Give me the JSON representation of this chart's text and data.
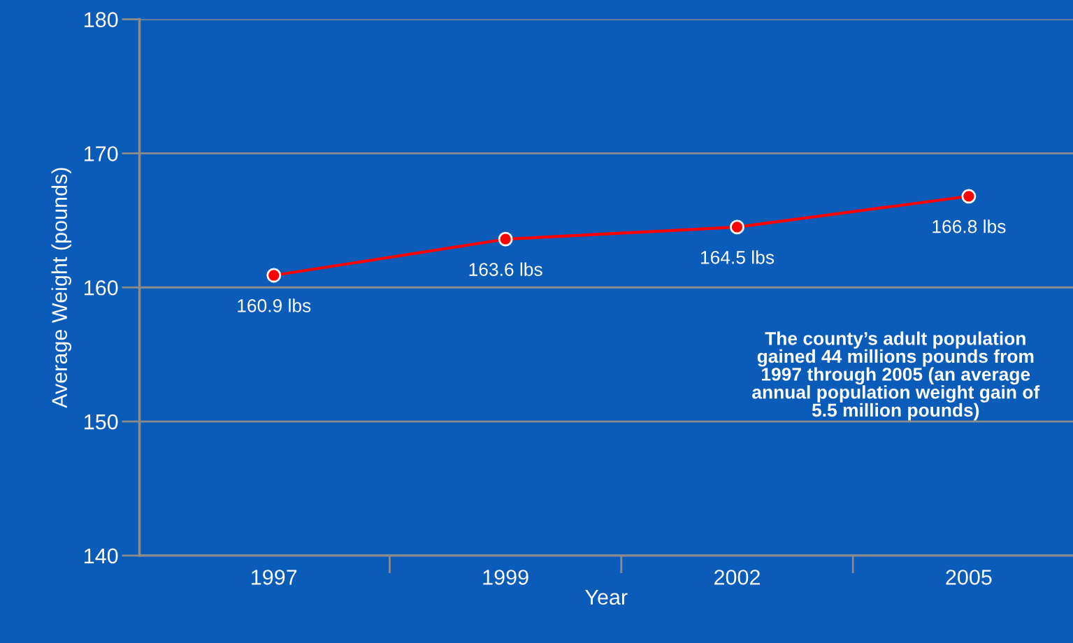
{
  "chart_data": {
    "type": "line",
    "xlabel": "Year",
    "ylabel": "Average Weight (pounds)",
    "categories": [
      "1997",
      "1999",
      "2002",
      "2005"
    ],
    "series": [
      {
        "color": "#ff0000",
        "values": [
          160.9,
          163.6,
          164.5,
          166.8
        ],
        "value_labels": [
          "160.9 lbs",
          "163.6 lbs",
          "164.5 lbs",
          "166.8 lbs"
        ]
      }
    ],
    "ylim": [
      140,
      180
    ],
    "yticks": [
      140,
      150,
      160,
      170,
      180
    ],
    "grid": "y",
    "marker": "circle",
    "line_style": "solid",
    "annotations": [
      "The county’s adult population\ngained 44 millions pounds from\n1997 through 2005 (an average\nannual population weight gain of\n5.5 million pounds)"
    ]
  }
}
